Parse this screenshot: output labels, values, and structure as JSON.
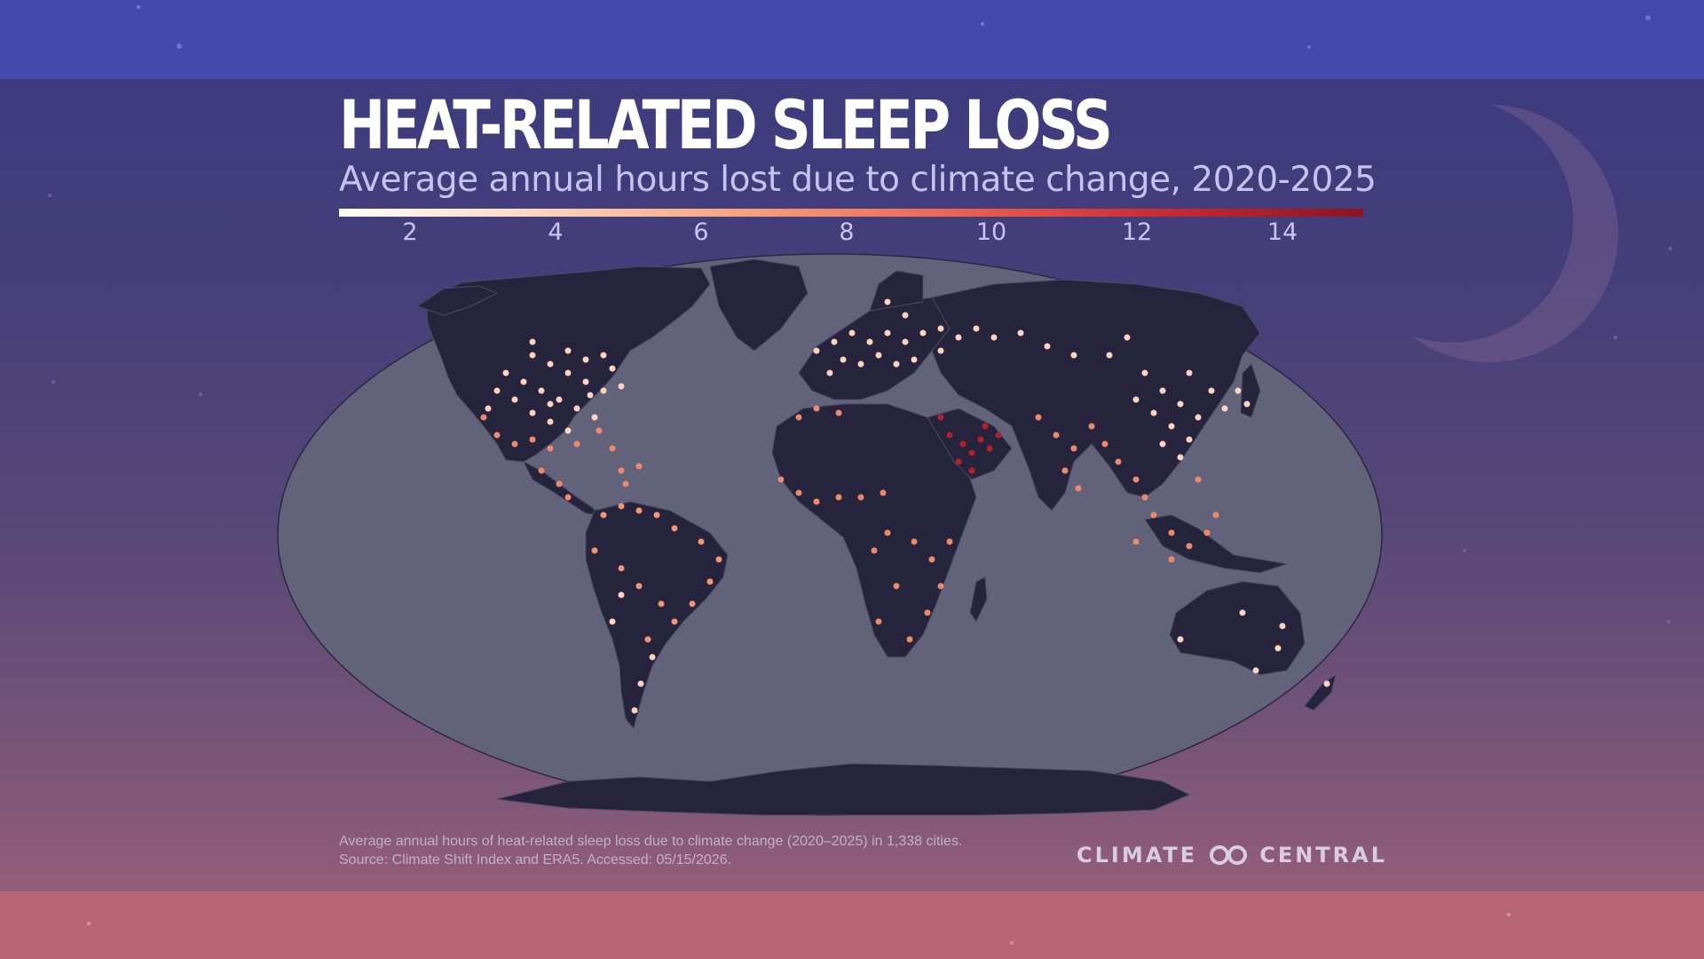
{
  "title": "HEAT-RELATED SLEEP LOSS",
  "subtitle": "Average annual hours lost due to climate change, 2020-2025",
  "legend": {
    "ticks": [
      "2",
      "4",
      "6",
      "8",
      "10",
      "12",
      "14"
    ],
    "colors": [
      "#ffffff",
      "#fbd9c2",
      "#f7a57f",
      "#ec6a55",
      "#cf2f35",
      "#8a1322"
    ]
  },
  "map": {
    "ocean_color": "#62627a",
    "land_color": "#25243c",
    "point_colors": {
      "low": "#fbd9c2",
      "mid": "#f39474",
      "high": "#e8664f",
      "highest": "#b1222c"
    }
  },
  "footnote": {
    "line1": "Average annual hours of heat-related sleep loss due to climate change (2020–2025) in 1,338 cities.",
    "line2": "Source: Climate Shift Index and ERA5. Accessed: 05/15/2026."
  },
  "brand": {
    "word1": "CLIMATE",
    "word2": "CENTRAL",
    "logo_icon": "double-ring-logo-icon"
  }
}
